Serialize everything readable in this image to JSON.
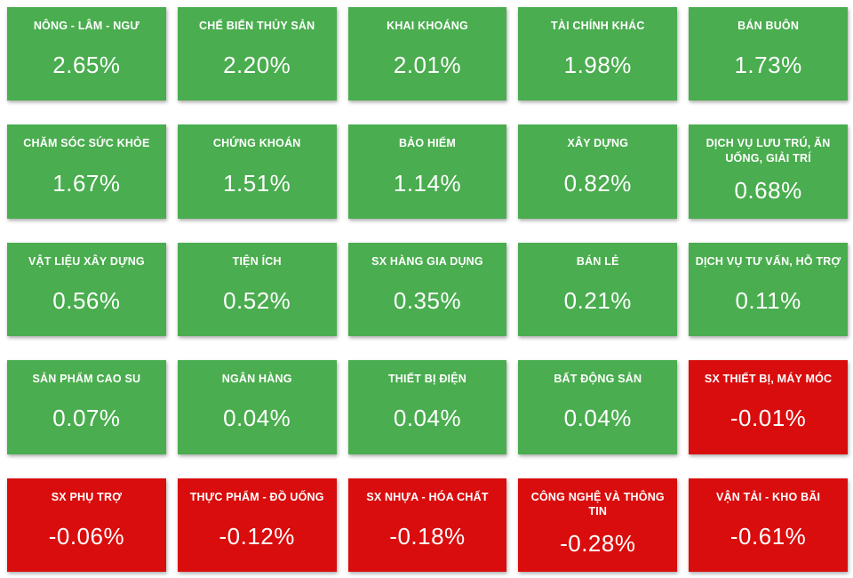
{
  "colors": {
    "positive": "#4aad4f",
    "negative": "#d90d0d",
    "text": "#ffffff",
    "background": "#ffffff"
  },
  "tiles": [
    {
      "label": "NÔNG - LÂM - NGƯ",
      "value": "2.65%",
      "status": "positive"
    },
    {
      "label": "CHẾ BIẾN THỦY SẢN",
      "value": "2.20%",
      "status": "positive"
    },
    {
      "label": "KHAI KHOÁNG",
      "value": "2.01%",
      "status": "positive"
    },
    {
      "label": "TÀI CHÍNH KHÁC",
      "value": "1.98%",
      "status": "positive"
    },
    {
      "label": "BÁN BUÔN",
      "value": "1.73%",
      "status": "positive"
    },
    {
      "label": "CHĂM SÓC SỨC KHỎE",
      "value": "1.67%",
      "status": "positive"
    },
    {
      "label": "CHỨNG KHOÁN",
      "value": "1.51%",
      "status": "positive"
    },
    {
      "label": "BẢO HIỂM",
      "value": "1.14%",
      "status": "positive"
    },
    {
      "label": "XÂY DỰNG",
      "value": "0.82%",
      "status": "positive"
    },
    {
      "label": "DỊCH VỤ LƯU TRÚ, ĂN UỐNG, GIẢI TRÍ",
      "value": "0.68%",
      "status": "positive"
    },
    {
      "label": "VẬT LIỆU XÂY DỰNG",
      "value": "0.56%",
      "status": "positive"
    },
    {
      "label": "TIỆN ÍCH",
      "value": "0.52%",
      "status": "positive"
    },
    {
      "label": "SX HÀNG GIA DỤNG",
      "value": "0.35%",
      "status": "positive"
    },
    {
      "label": "BÁN LẺ",
      "value": "0.21%",
      "status": "positive"
    },
    {
      "label": "DỊCH VỤ TƯ VẤN, HỖ TRỢ",
      "value": "0.11%",
      "status": "positive"
    },
    {
      "label": "SẢN PHẨM CAO SU",
      "value": "0.07%",
      "status": "positive"
    },
    {
      "label": "NGÂN HÀNG",
      "value": "0.04%",
      "status": "positive"
    },
    {
      "label": "THIẾT BỊ ĐIỆN",
      "value": "0.04%",
      "status": "positive"
    },
    {
      "label": "BẤT ĐỘNG SẢN",
      "value": "0.04%",
      "status": "positive"
    },
    {
      "label": "SX THIẾT BỊ, MÁY MÓC",
      "value": "-0.01%",
      "status": "negative"
    },
    {
      "label": "SX PHỤ TRỢ",
      "value": "-0.06%",
      "status": "negative"
    },
    {
      "label": "THỰC PHẨM - ĐỒ UỐNG",
      "value": "-0.12%",
      "status": "negative"
    },
    {
      "label": "SX NHỰA - HÓA CHẤT",
      "value": "-0.18%",
      "status": "negative"
    },
    {
      "label": "CÔNG NGHỆ VÀ THÔNG TIN",
      "value": "-0.28%",
      "status": "negative"
    },
    {
      "label": "VẬN TẢI - KHO BÃI",
      "value": "-0.61%",
      "status": "negative"
    }
  ],
  "chart_data": {
    "type": "heatmap",
    "title": "",
    "layout": "5x5 grid of sector tiles, sorted descending by change",
    "value_format": "percent",
    "positive_color": "#4aad4f",
    "negative_color": "#d90d0d",
    "categories": [
      "NÔNG - LÂM - NGƯ",
      "CHẾ BIẾN THỦY SẢN",
      "KHAI KHOÁNG",
      "TÀI CHÍNH KHÁC",
      "BÁN BUÔN",
      "CHĂM SÓC SỨC KHỎE",
      "CHỨNG KHOÁN",
      "BẢO HIỂM",
      "XÂY DỰNG",
      "DỊCH VỤ LƯU TRÚ, ĂN UỐNG, GIẢI TRÍ",
      "VẬT LIỆU XÂY DỰNG",
      "TIỆN ÍCH",
      "SX HÀNG GIA DỤNG",
      "BÁN LẺ",
      "DỊCH VỤ TƯ VẤN, HỖ TRỢ",
      "SẢN PHẨM CAO SU",
      "NGÂN HÀNG",
      "THIẾT BỊ ĐIỆN",
      "BẤT ĐỘNG SẢN",
      "SX THIẾT BỊ, MÁY MÓC",
      "SX PHỤ TRỢ",
      "THỰC PHẨM - ĐỒ UỐNG",
      "SX NHỰA - HÓA CHẤT",
      "CÔNG NGHỆ VÀ THÔNG TIN",
      "VẬN TẢI - KHO BÃI"
    ],
    "values": [
      2.65,
      2.2,
      2.01,
      1.98,
      1.73,
      1.67,
      1.51,
      1.14,
      0.82,
      0.68,
      0.56,
      0.52,
      0.35,
      0.21,
      0.11,
      0.07,
      0.04,
      0.04,
      0.04,
      -0.01,
      -0.06,
      -0.12,
      -0.18,
      -0.28,
      -0.61
    ]
  }
}
